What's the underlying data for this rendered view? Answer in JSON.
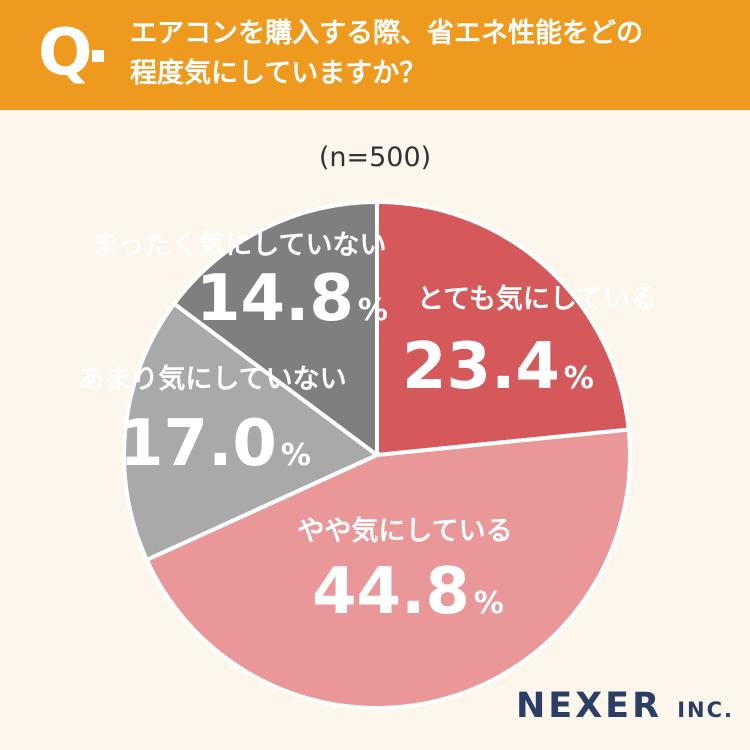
{
  "header": {
    "q_label": "Q",
    "question_line1": "エアコンを購入する際、省エネ性能をどの",
    "question_line2": "程度気にしていますか？"
  },
  "sample_size": "(n=500)",
  "logo": {
    "main": "NEXER",
    "sub": "INC."
  },
  "colors": {
    "header_bg": "#ee9a1f",
    "background": "#fdf6ec",
    "very_concerned": "#d5595b",
    "somewhat_concerned": "#e99798",
    "not_very_concerned": "#a9a9a9",
    "not_at_all_concerned": "#7f7f7f",
    "logo": "#2a3f63"
  },
  "chart_data": {
    "type": "pie",
    "unit": "%",
    "slices": [
      {
        "label": "とても気にしている",
        "value": 23.4,
        "value_text": "23.4",
        "color": "#d5595b",
        "label_color": "#ffffff"
      },
      {
        "label": "やや気にしている",
        "value": 44.8,
        "value_text": "44.8",
        "color": "#e99798",
        "label_color": "#ffffff"
      },
      {
        "label": "あまり気にしていない",
        "value": 17.0,
        "value_text": "17.0",
        "color": "#a9a9a9",
        "label_color": "#ffffff"
      },
      {
        "label": "まったく気にしていない",
        "value": 14.8,
        "value_text": "14.8",
        "color": "#7f7f7f",
        "label_color": "#ffffff"
      }
    ]
  }
}
